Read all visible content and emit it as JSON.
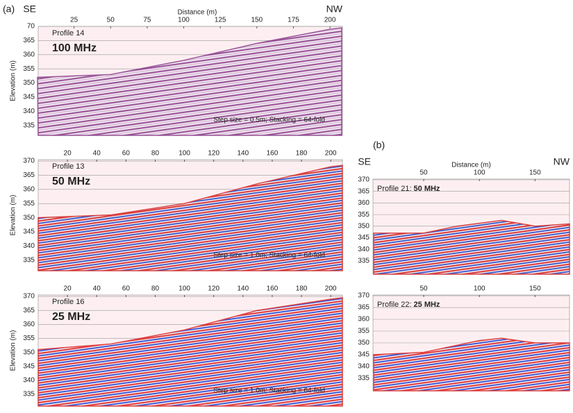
{
  "panel_labels": [
    "(a)",
    "(b)"
  ],
  "chart_data": [
    {
      "type": "radargram",
      "title": "Profile 14",
      "subtitle": "100 MHz",
      "annotation": "Step size = 0.5m; Stacking = 64-fold",
      "xlabel": "Distance (m)",
      "ylabel": "Elevation (m)",
      "direction_labels": [
        "SE",
        "NW"
      ],
      "xlim": [
        0.5,
        208.5
      ],
      "xticks": [
        25,
        50,
        75,
        100,
        125,
        150,
        175,
        200
      ],
      "ylim": [
        331.5,
        370
      ],
      "yticks": [
        335,
        340,
        345,
        350,
        355,
        360,
        365,
        {
          "value": 370,
          "label": "70"
        }
      ],
      "x": [
        0,
        50,
        100,
        150,
        200,
        208
      ],
      "values": [
        352,
        353,
        358,
        364,
        369,
        369.5
      ],
      "colors": [
        "#8a3a8a",
        "#d9b8d9"
      ],
      "grid": true
    },
    {
      "type": "radargram",
      "title": "Profile 13",
      "subtitle": "50 MHz",
      "annotation": "Step size = 1.0m; Stacking = 64-fold",
      "ylabel": "Elevation (m)",
      "xlim": [
        0,
        208
      ],
      "xticks": [
        20,
        40,
        60,
        80,
        100,
        120,
        140,
        160,
        180,
        200
      ],
      "ylim": [
        331.3,
        370.5
      ],
      "yticks": [
        335,
        340,
        345,
        350,
        355,
        360,
        365,
        370
      ],
      "x": [
        0,
        50,
        100,
        150,
        200,
        208
      ],
      "values": [
        350,
        351,
        355,
        362,
        368,
        368.5
      ],
      "colors": [
        "#d42222",
        "#2244c4"
      ],
      "grid": true
    },
    {
      "type": "radargram",
      "title": "Profile 16",
      "subtitle": "25 MHz",
      "annotation": "Step size = 1.0m; Stacking = 64-fold",
      "ylabel": "Elevation (m)",
      "xlim": [
        0,
        208
      ],
      "xticks": [
        20,
        40,
        60,
        80,
        100,
        120,
        140,
        160,
        180,
        200
      ],
      "ylim": [
        330.8,
        370.5
      ],
      "yticks": [
        335,
        340,
        345,
        350,
        355,
        360,
        365,
        370
      ],
      "x": [
        0,
        50,
        100,
        150,
        200,
        208
      ],
      "values": [
        351,
        353,
        358,
        365,
        369,
        369.5
      ],
      "colors": [
        "#dd2222",
        "#1f3fd0"
      ],
      "grid": true
    },
    {
      "type": "radargram",
      "title": "Profile 21:",
      "subtitle": "50 MHz",
      "xlabel": "Distance (m)",
      "direction_labels": [
        "SE",
        "NW"
      ],
      "xlim": [
        4.4,
        181
      ],
      "xticks": [
        50,
        100,
        150
      ],
      "ylim": [
        329.3,
        370.3
      ],
      "yticks": [
        335,
        340,
        345,
        350,
        355,
        360,
        365,
        370
      ],
      "x": [
        5,
        50,
        80,
        120,
        150,
        181
      ],
      "values": [
        347,
        347,
        350,
        352.5,
        350,
        351
      ],
      "colors": [
        "#d42222",
        "#2244c4"
      ],
      "grid": true
    },
    {
      "type": "radargram",
      "title": "Profile 22:",
      "subtitle": "25 MHz",
      "xlim": [
        4.4,
        181
      ],
      "xticks": [
        50,
        100,
        150
      ],
      "ylim": [
        329.7,
        370.3
      ],
      "yticks": [
        335,
        340,
        345,
        350,
        355,
        360,
        365,
        370
      ],
      "x": [
        5,
        50,
        100,
        120,
        150,
        181
      ],
      "values": [
        345,
        346,
        351,
        352,
        350,
        350
      ],
      "colors": [
        "#dd2222",
        "#1f3fd0"
      ],
      "grid": true
    }
  ]
}
